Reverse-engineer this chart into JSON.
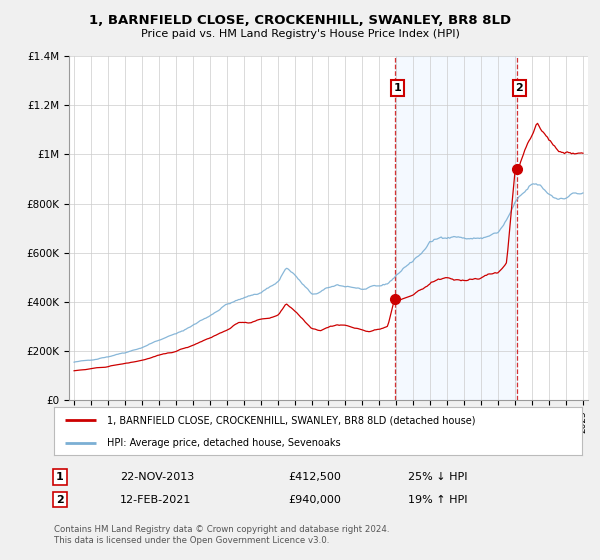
{
  "title": "1, BARNFIELD CLOSE, CROCKENHILL, SWANLEY, BR8 8LD",
  "subtitle": "Price paid vs. HM Land Registry's House Price Index (HPI)",
  "red_label": "1, BARNFIELD CLOSE, CROCKENHILL, SWANLEY, BR8 8LD (detached house)",
  "blue_label": "HPI: Average price, detached house, Sevenoaks",
  "sale1_label": "1",
  "sale1_date": "22-NOV-2013",
  "sale1_price": "£412,500",
  "sale1_hpi": "25% ↓ HPI",
  "sale2_label": "2",
  "sale2_date": "12-FEB-2021",
  "sale2_price": "£940,000",
  "sale2_hpi": "19% ↑ HPI",
  "footer": "Contains HM Land Registry data © Crown copyright and database right 2024.\nThis data is licensed under the Open Government Licence v3.0.",
  "ylim": [
    0,
    1400000
  ],
  "yticks": [
    0,
    200000,
    400000,
    600000,
    800000,
    1000000,
    1200000,
    1400000
  ],
  "ytick_labels": [
    "£0",
    "£200K",
    "£400K",
    "£600K",
    "£800K",
    "£1M",
    "£1.2M",
    "£1.4M"
  ],
  "bg_color": "#f0f0f0",
  "plot_bg": "#ffffff",
  "red_color": "#cc0000",
  "blue_color": "#7bafd4",
  "marker_box_color": "#cc0000",
  "shade_color": "#ddeeff",
  "sale1_year": 2013.9,
  "sale2_year": 2021.1,
  "sale1_value": 412500,
  "sale2_value": 940000
}
